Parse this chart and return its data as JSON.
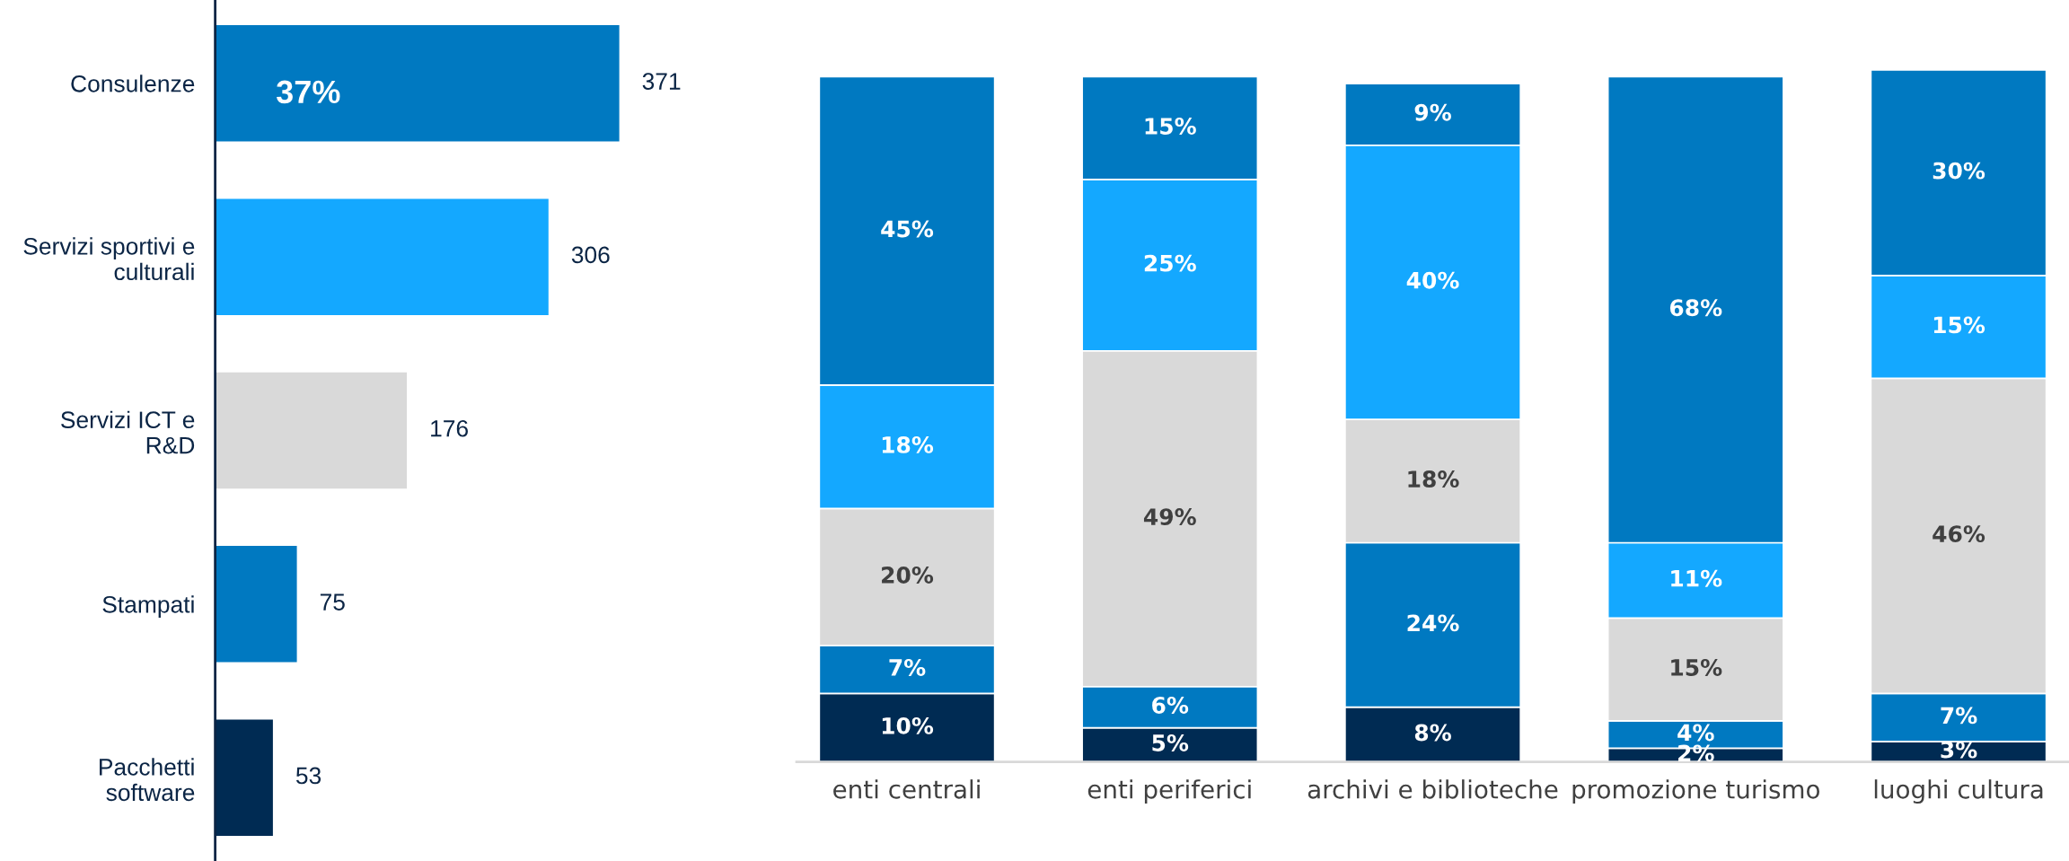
{
  "chart_data": [
    {
      "type": "bar",
      "orientation": "horizontal",
      "categories": [
        "Consulenze",
        "Servizi sportivi e\nculturali",
        "Servizi ICT e\nR&D",
        "Stampati",
        "Pacchetti\nsoftware"
      ],
      "values": [
        371,
        306,
        176,
        75,
        53
      ],
      "colors": [
        "#0079c1",
        "#14a8ff",
        "#d9d9d9",
        "#0079c1",
        "#002b53"
      ],
      "data_labels": true,
      "annotations": [
        "37%"
      ]
    },
    {
      "type": "bar",
      "stacked": true,
      "categories": [
        "enti centrali",
        "enti periferici",
        "archivi e biblioteche",
        "promozione turismo",
        "luoghi cultura"
      ],
      "series": [
        {
          "color": "#002b53",
          "values": [
            10,
            5,
            8,
            2,
            3
          ],
          "value_labels": [
            "10%",
            "5%",
            "8%",
            "2%",
            "3%"
          ]
        },
        {
          "color": "#0079c1",
          "values": [
            7,
            6,
            24,
            4,
            7
          ],
          "value_labels": [
            "7%",
            "6%",
            "24%",
            "4%",
            "7%"
          ]
        },
        {
          "color": "#d9d9d9",
          "values": [
            20,
            49,
            18,
            15,
            46
          ],
          "value_labels": [
            "20%",
            "49%",
            "18%",
            "15%",
            "46%"
          ]
        },
        {
          "color": "#14a8ff",
          "values": [
            18,
            25,
            40,
            11,
            15
          ],
          "value_labels": [
            "18%",
            "25%",
            "40%",
            "11%",
            "15%"
          ]
        },
        {
          "color": "#0079c1",
          "values": [
            45,
            15,
            9,
            68,
            30
          ],
          "value_labels": [
            "45%",
            "15%",
            "9%",
            "68%",
            "30%"
          ]
        }
      ]
    }
  ]
}
